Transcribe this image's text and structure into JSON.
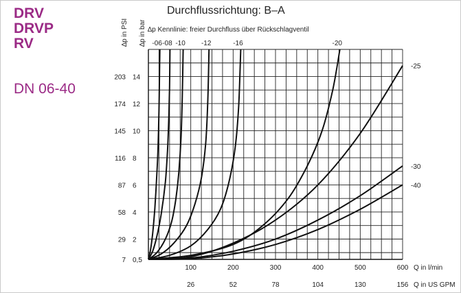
{
  "product": {
    "lines": [
      "DRV",
      "DRVP",
      "RV"
    ],
    "size_range": "DN 06-40",
    "accent_color": "#9b2b86"
  },
  "chart_data": {
    "type": "line",
    "title": "Durchflussrichtung: B–A",
    "subtitle": "∆p Kennlinie: freier Durchfluss über Rückschlagventil",
    "y_axis_bar_label": "∆p in bar",
    "y_axis_psi_label": "∆p in PSI",
    "x_axis_lpm_label": "Q in l/min",
    "x_axis_gpm_label": "Q in US GPM",
    "xlim": [
      0,
      600
    ],
    "ylim": [
      0.5,
      16
    ],
    "grid": true,
    "x_ticks_lpm": [
      "100",
      "200",
      "300",
      "400",
      "500",
      "600"
    ],
    "x_ticks_gpm": [
      "26",
      "52",
      "78",
      "104",
      "130",
      "156"
    ],
    "y_ticks_bar": [
      "0,5",
      "2",
      "4",
      "6",
      "8",
      "10",
      "12",
      "14"
    ],
    "y_ticks_psi": [
      "7",
      "29",
      "58",
      "87",
      "116",
      "145",
      "174",
      "203"
    ],
    "series": [
      {
        "name": "-06",
        "end_label": "top",
        "x": [
          0,
          5,
          10,
          15,
          20,
          23,
          25,
          26,
          27
        ],
        "y": [
          0.5,
          1.2,
          2.4,
          4.2,
          6.8,
          9.0,
          11.5,
          13.5,
          16
        ]
      },
      {
        "name": "-08",
        "end_label": "top",
        "x": [
          0,
          10,
          20,
          30,
          40,
          45,
          48,
          50,
          51
        ],
        "y": [
          0.5,
          1.1,
          2.2,
          3.8,
          6.2,
          8.5,
          10.8,
          13.2,
          16
        ]
      },
      {
        "name": "-10",
        "end_label": "top",
        "x": [
          0,
          20,
          40,
          55,
          65,
          72,
          77,
          80,
          82
        ],
        "y": [
          0.5,
          1.0,
          2.0,
          3.3,
          5.0,
          7.0,
          9.5,
          12.5,
          16
        ]
      },
      {
        "name": "-12",
        "end_label": "top",
        "x": [
          0,
          30,
          60,
          90,
          110,
          125,
          135,
          140,
          143
        ],
        "y": [
          0.5,
          0.9,
          1.7,
          3.0,
          4.6,
          6.5,
          9.0,
          12.0,
          16
        ]
      },
      {
        "name": "-16",
        "end_label": "top",
        "x": [
          0,
          50,
          100,
          140,
          170,
          190,
          205,
          213,
          218
        ],
        "y": [
          0.5,
          0.8,
          1.5,
          2.7,
          4.2,
          6.2,
          8.8,
          11.8,
          16
        ]
      },
      {
        "name": "-20",
        "end_label": "top",
        "x": [
          0,
          100,
          200,
          270,
          330,
          375,
          410,
          435,
          452
        ],
        "y": [
          0.5,
          0.8,
          1.6,
          3.0,
          5.0,
          7.4,
          10.0,
          13.0,
          16
        ]
      },
      {
        "name": "-25",
        "end_label": "right",
        "x": [
          0,
          100,
          200,
          300,
          400,
          500,
          600
        ],
        "y": [
          0.5,
          0.7,
          1.7,
          3.4,
          6.0,
          9.8,
          14.8
        ]
      },
      {
        "name": "-30",
        "end_label": "right",
        "x": [
          0,
          100,
          200,
          300,
          400,
          500,
          600
        ],
        "y": [
          0.5,
          0.6,
          1.1,
          2.0,
          3.4,
          5.2,
          7.4
        ]
      },
      {
        "name": "-40",
        "end_label": "right",
        "x": [
          0,
          100,
          200,
          300,
          400,
          500,
          600
        ],
        "y": [
          0.5,
          0.55,
          0.9,
          1.6,
          2.7,
          4.2,
          6.0
        ]
      }
    ]
  }
}
